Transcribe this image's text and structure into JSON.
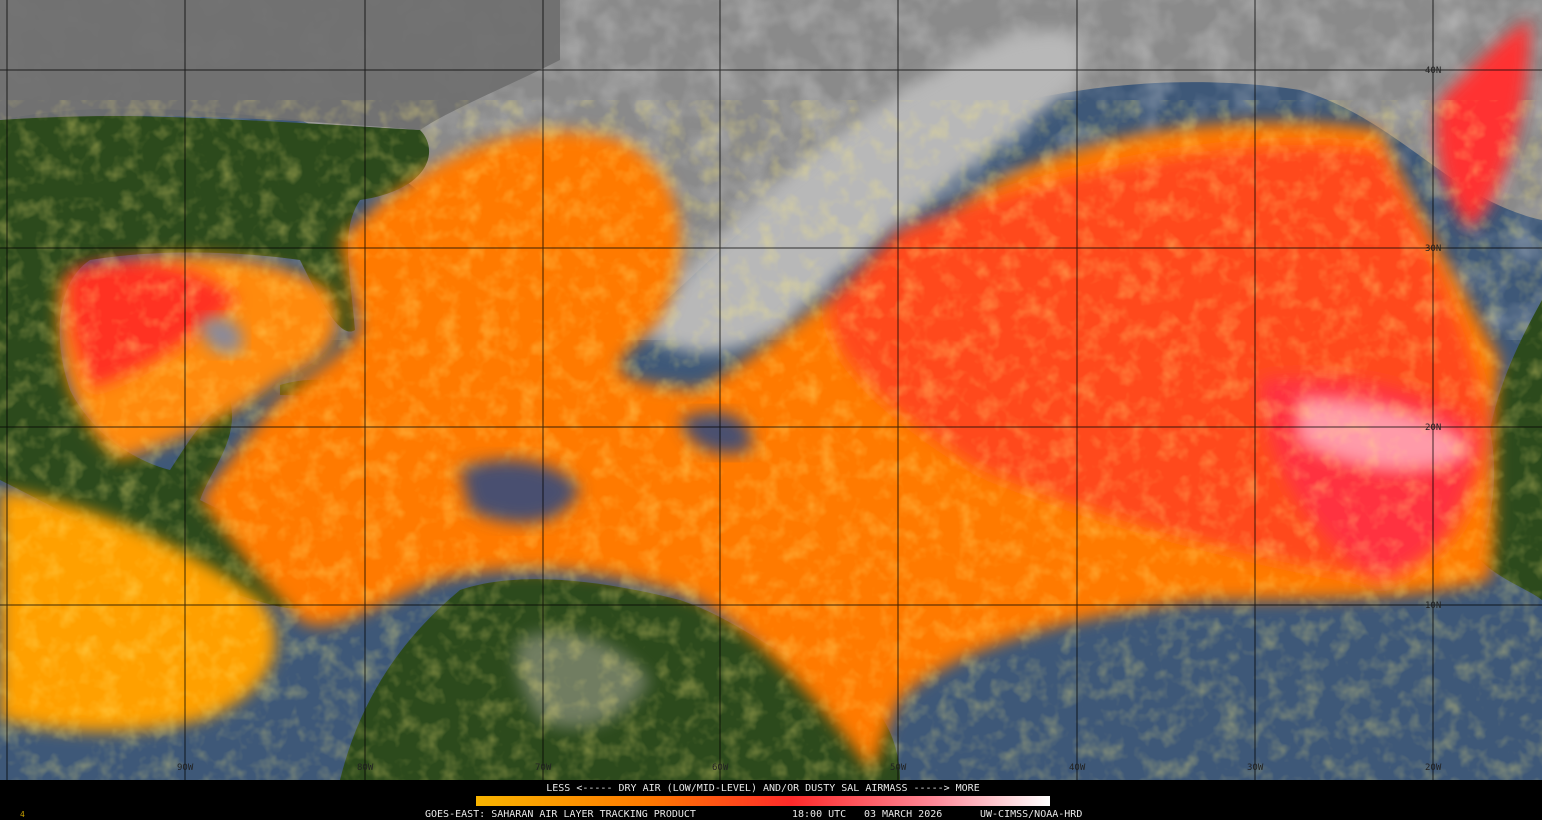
{
  "caption": {
    "legend_text": "LESS <----- DRY AIR (LOW/MID-LEVEL) AND/OR DUSTY SAL AIRMASS -----> MORE",
    "product": "GOES-EAST: SAHARAN AIR LAYER TRACKING PRODUCT",
    "time": "18:00 UTC",
    "date": "03 MARCH 2026",
    "credit": "UW-CIMSS/NOAA-HRD"
  },
  "frame_number": "4",
  "grid": {
    "latitudes": [
      "40N",
      "30N",
      "20N",
      "10N"
    ],
    "longitudes": [
      "90W",
      "80W",
      "70W",
      "60W",
      "50W",
      "40W",
      "30W",
      "20W"
    ]
  }
}
